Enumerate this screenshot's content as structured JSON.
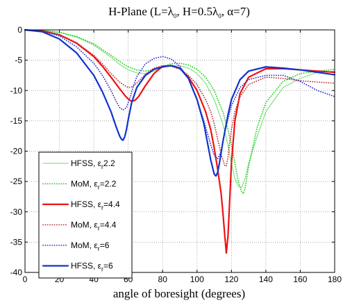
{
  "chart_data": {
    "type": "line",
    "title": "H-Plane (L=λ₀, H=0.5λ₀, α=7)",
    "title_parts": {
      "pre": "H-Plane (L=λ",
      "sub1": "0",
      "mid": ", H=0.5λ",
      "sub2": "0",
      "post": ", α=7)"
    },
    "xlabel": "angle of boresight (degrees)",
    "ylabel": "",
    "xlim": [
      0,
      180
    ],
    "ylim": [
      -40,
      0
    ],
    "xticks": [
      0,
      20,
      40,
      60,
      80,
      100,
      120,
      140,
      160,
      180
    ],
    "yticks": [
      0,
      -5,
      -10,
      -15,
      -20,
      -25,
      -30,
      -35,
      -40
    ],
    "grid": true,
    "legend_position": "bottom-left",
    "series": [
      {
        "name": "HFSS, εr2.2",
        "label_parts": {
          "pre": "HFSS, ε",
          "sub": "r",
          "post": "2.2"
        },
        "color": "#66dd66",
        "style": "solid",
        "width": 1,
        "x": [
          0,
          10,
          20,
          30,
          40,
          50,
          55,
          60,
          65,
          70,
          75,
          80,
          85,
          90,
          95,
          100,
          105,
          110,
          115,
          118,
          120,
          122,
          124,
          126,
          128,
          130,
          135,
          140,
          150,
          160,
          170,
          180
        ],
        "y": [
          0,
          -0.1,
          -0.4,
          -1.2,
          -2.5,
          -4.5,
          -5.7,
          -6.6,
          -7.1,
          -7.2,
          -6.8,
          -6.2,
          -5.9,
          -5.9,
          -6.3,
          -7.2,
          -8.8,
          -11.5,
          -15.5,
          -19,
          -22,
          -24.5,
          -25.8,
          -26,
          -24.5,
          -22,
          -17.5,
          -13.5,
          -9.5,
          -8,
          -7,
          -6.8
        ]
      },
      {
        "name": "MoM, εr=2.2",
        "label_parts": {
          "pre": "MoM, ε",
          "sub": "r",
          "post": "=2.2"
        },
        "color": "#22cc22",
        "style": "dotted",
        "width": 1.8,
        "x": [
          0,
          10,
          20,
          30,
          40,
          50,
          55,
          60,
          65,
          70,
          75,
          80,
          85,
          90,
          95,
          100,
          105,
          110,
          115,
          118,
          120,
          122,
          124,
          126,
          127,
          128,
          130,
          135,
          140,
          150,
          160,
          170,
          180
        ],
        "y": [
          0,
          -0.1,
          -0.4,
          -1.1,
          -2.3,
          -4.2,
          -5.2,
          -6.1,
          -6.6,
          -6.8,
          -6.5,
          -6,
          -5.6,
          -5.5,
          -5.8,
          -6.5,
          -7.8,
          -10,
          -13.5,
          -16.5,
          -19,
          -22,
          -25,
          -26.8,
          -27,
          -26,
          -22.5,
          -16,
          -12,
          -8.5,
          -7.2,
          -6.8,
          -6.5
        ]
      },
      {
        "name": "HFSS, εr=4.4",
        "label_parts": {
          "pre": "HFSS, ε",
          "sub": "r",
          "post": "=4.4"
        },
        "color": "#ee1111",
        "style": "solid",
        "width": 2.2,
        "x": [
          0,
          10,
          20,
          30,
          40,
          45,
          50,
          55,
          58,
          60,
          62,
          64,
          66,
          70,
          75,
          80,
          85,
          90,
          95,
          100,
          105,
          108,
          110,
          112,
          114,
          115,
          116,
          117,
          118,
          119,
          120,
          122,
          125,
          130,
          140,
          150,
          160,
          170,
          180
        ],
        "y": [
          0,
          -0.2,
          -0.8,
          -2.2,
          -4.4,
          -6,
          -7.8,
          -9.7,
          -10.8,
          -11.4,
          -11.8,
          -11.6,
          -11,
          -9.2,
          -7.2,
          -6,
          -5.9,
          -6.3,
          -7.8,
          -10,
          -13.5,
          -16.5,
          -19.5,
          -23,
          -27,
          -30,
          -33.5,
          -36.8,
          -34,
          -28,
          -22,
          -15,
          -10.5,
          -7.8,
          -6.4,
          -6.4,
          -6.6,
          -6.8,
          -7
        ]
      },
      {
        "name": "MoM, εr=4.4",
        "label_parts": {
          "pre": "MoM, ε",
          "sub": "r",
          "post": "=4.4"
        },
        "color": "#bb3333",
        "style": "dotted",
        "width": 1.8,
        "x": [
          0,
          10,
          20,
          30,
          40,
          45,
          50,
          55,
          58,
          60,
          62,
          64,
          66,
          70,
          75,
          80,
          85,
          90,
          95,
          100,
          105,
          108,
          110,
          112,
          114,
          116,
          117,
          118,
          119,
          120,
          122,
          125,
          130,
          140,
          150,
          160,
          170,
          180
        ],
        "y": [
          0,
          -0.2,
          -0.8,
          -2.1,
          -4.2,
          -5.6,
          -7.2,
          -8.6,
          -9.2,
          -9.5,
          -9.4,
          -9,
          -8.5,
          -7.3,
          -6.3,
          -5.9,
          -6,
          -6.5,
          -7.5,
          -9,
          -11.5,
          -13.5,
          -15.5,
          -18,
          -20.5,
          -22.3,
          -22.5,
          -21,
          -18.5,
          -16.5,
          -13.5,
          -11,
          -9,
          -7.8,
          -8,
          -8.4,
          -8.6,
          -8.8
        ]
      },
      {
        "name": "MoM, εr=6",
        "label_parts": {
          "pre": "MoM, ε",
          "sub": "r",
          "post": "=6"
        },
        "color": "#3333cc",
        "style": "dotted",
        "width": 1.8,
        "x": [
          0,
          10,
          20,
          30,
          40,
          45,
          50,
          53,
          55,
          57,
          59,
          61,
          63,
          65,
          70,
          75,
          80,
          85,
          90,
          95,
          100,
          104,
          106,
          108,
          110,
          112,
          114,
          116,
          120,
          125,
          130,
          140,
          150,
          160,
          170,
          180
        ],
        "y": [
          0,
          -0.2,
          -1,
          -2.8,
          -5.5,
          -7.5,
          -10,
          -11.8,
          -12.8,
          -13.2,
          -12.8,
          -11.2,
          -9.3,
          -7.7,
          -5.6,
          -4.7,
          -4.4,
          -4.8,
          -6,
          -8,
          -11.5,
          -15,
          -17,
          -19,
          -20.7,
          -21.3,
          -20,
          -17,
          -12.5,
          -9.5,
          -8.2,
          -7.5,
          -7.5,
          -8.5,
          -10,
          -11
        ]
      },
      {
        "name": "HFSS, εr=6",
        "label_parts": {
          "pre": "HFSS, ε",
          "sub": "r",
          "post": "=6"
        },
        "color": "#1133cc",
        "style": "solid",
        "width": 2.2,
        "x": [
          0,
          10,
          20,
          30,
          40,
          45,
          50,
          53,
          55,
          56,
          57,
          58,
          59,
          60,
          62,
          65,
          70,
          75,
          80,
          85,
          90,
          95,
          100,
          104,
          106,
          108,
          110,
          111,
          112,
          113,
          115,
          118,
          120,
          125,
          130,
          140,
          150,
          160,
          170,
          180
        ],
        "y": [
          0,
          -0.3,
          -1.5,
          -3.8,
          -7.5,
          -10.2,
          -13.5,
          -16,
          -17.5,
          -18,
          -18.2,
          -17.6,
          -16.4,
          -14.8,
          -12,
          -9.5,
          -7.5,
          -6.5,
          -6.1,
          -5.9,
          -6.3,
          -8,
          -11.5,
          -15.5,
          -18.5,
          -21.5,
          -23.8,
          -24.1,
          -23.5,
          -22,
          -18.5,
          -14,
          -11.5,
          -8.2,
          -6.8,
          -6.1,
          -6.3,
          -6.6,
          -7,
          -7.4
        ]
      }
    ]
  }
}
